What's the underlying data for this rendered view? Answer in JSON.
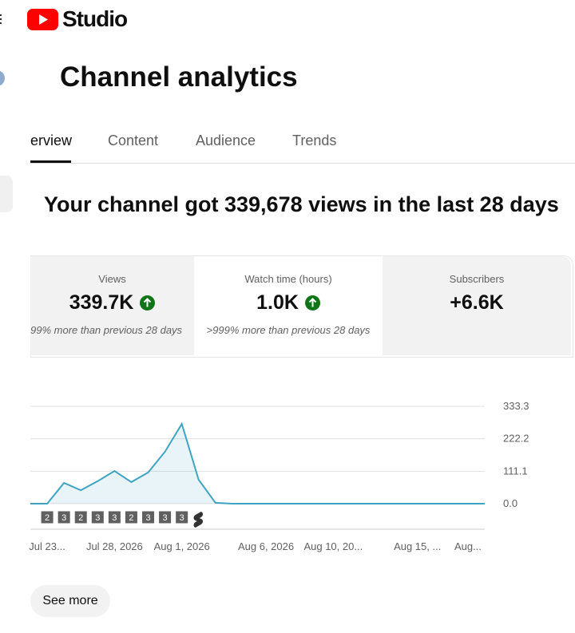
{
  "header": {
    "logo": "Studio"
  },
  "page_title": "Channel analytics",
  "tabs": [
    "erview",
    "Content",
    "Audience",
    "Trends"
  ],
  "headline": "Your channel got 339,678 views in the last 28 days",
  "metrics": [
    {
      "label": "Views",
      "value": "339.7K",
      "note": "99% more than previous 28 days"
    },
    {
      "label": "Watch time (hours)",
      "value": "1.0K",
      "note": ">999% more than previous 28 days"
    },
    {
      "label": "Subscribers",
      "value": "+6.6K"
    }
  ],
  "chart_data": {
    "type": "line",
    "categories": [
      null,
      "Jul 23...",
      null,
      null,
      null,
      "Jul 28, 2026",
      null,
      null,
      null,
      "Aug 1, 2026",
      null,
      null,
      null,
      null,
      "Aug 6, 2026",
      null,
      null,
      null,
      "Aug 10, 20...",
      null,
      null,
      null,
      null,
      "Aug 15, ...",
      null,
      null,
      "Aug...",
      null
    ],
    "values": [
      0,
      0,
      71,
      46,
      77,
      112,
      74,
      107,
      178,
      273,
      82,
      3,
      0,
      0,
      0,
      0,
      0,
      0,
      0,
      0,
      0,
      0,
      0,
      0,
      0,
      0,
      0,
      0
    ],
    "color": "#3fa3c2",
    "ylim": [
      0,
      333.3
    ],
    "yticks": [
      {
        "value": 0,
        "label": "0.0"
      },
      111.1,
      222.2,
      333.3
    ],
    "grid": true,
    "markers": [
      2,
      3,
      2,
      3,
      3,
      2,
      3,
      3,
      3
    ]
  },
  "button": "See more"
}
